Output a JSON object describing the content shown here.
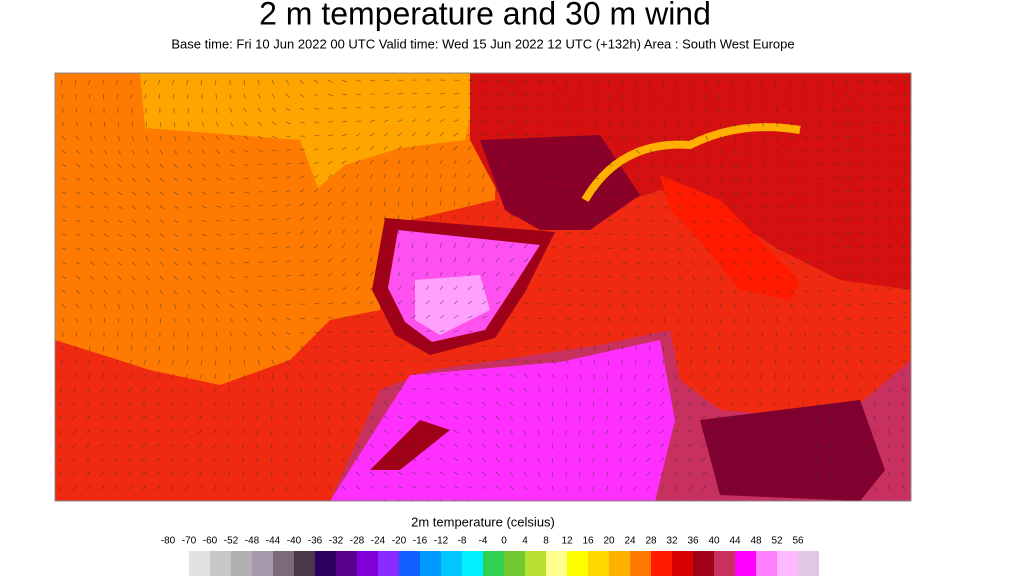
{
  "header": {
    "title": "2 m temperature and 30 m wind",
    "subtitle": "Base time: Fri 10 Jun 2022 00 UTC Valid time: Wed 15 Jun 2022 12 UTC (+132h) Area : South West Europe"
  },
  "colorbar": {
    "title": "2m temperature (celsius)",
    "ticks": [
      -80,
      -70,
      -60,
      -52,
      -48,
      -44,
      -40,
      -36,
      -32,
      -28,
      -24,
      -20,
      -16,
      -12,
      -8,
      -4,
      0,
      4,
      8,
      12,
      16,
      20,
      24,
      28,
      32,
      36,
      40,
      44,
      48,
      52,
      56
    ],
    "colors": [
      "#ffffff",
      "#e2e2e2",
      "#c8c8c8",
      "#b0b0b0",
      "#a898ac",
      "#7a6a7c",
      "#4a3848",
      "#2c0060",
      "#58008c",
      "#8000d8",
      "#8a2cff",
      "#1060ff",
      "#0098ff",
      "#00c8ff",
      "#00f0ff",
      "#30d050",
      "#70c830",
      "#b8e030",
      "#ffff90",
      "#ffff00",
      "#ffd800",
      "#ffb000",
      "#ff7a00",
      "#ff1a00",
      "#d80000",
      "#a00018",
      "#c83060",
      "#ff00ff",
      "#ff80ff",
      "#ffb8ff",
      "#e0c8e4"
    ]
  }
}
